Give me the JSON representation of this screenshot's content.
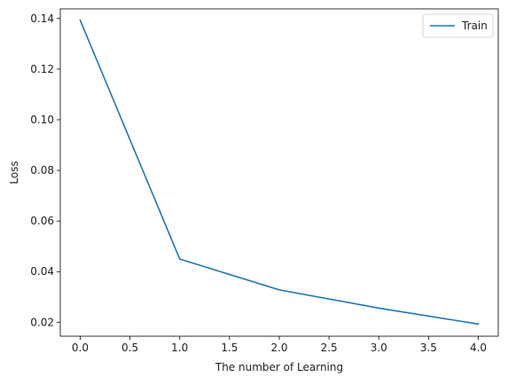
{
  "chart_data": {
    "type": "line",
    "title": "",
    "xlabel": "The number of Learning",
    "ylabel": "Loss",
    "xlim": [
      -0.2,
      4.2
    ],
    "ylim": [
      0.0145,
      0.1438
    ],
    "xticks": [
      0.0,
      0.5,
      1.0,
      1.5,
      2.0,
      2.5,
      3.0,
      3.5,
      4.0
    ],
    "xtick_labels": [
      "0.0",
      "0.5",
      "1.0",
      "1.5",
      "2.0",
      "2.5",
      "3.0",
      "3.5",
      "4.0"
    ],
    "yticks": [
      0.02,
      0.04,
      0.06,
      0.08,
      0.1,
      0.12,
      0.14
    ],
    "ytick_labels": [
      "0.02",
      "0.04",
      "0.06",
      "0.08",
      "0.10",
      "0.12",
      "0.14"
    ],
    "grid": false,
    "legend": {
      "position": "top-right"
    },
    "series": [
      {
        "name": "Train",
        "color": "#1f77b4",
        "x": [
          0,
          1,
          2,
          3,
          4
        ],
        "y": [
          0.1393,
          0.045,
          0.0328,
          0.0256,
          0.0193
        ]
      }
    ]
  }
}
